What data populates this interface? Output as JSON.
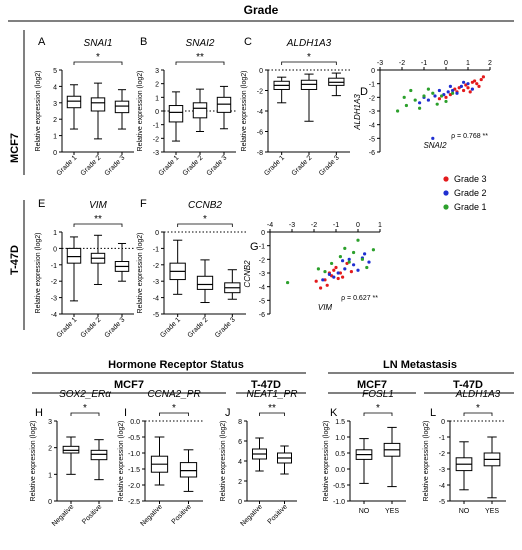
{
  "figure": {
    "title": "Grade",
    "rows": [
      "MCF7",
      "T-47D"
    ],
    "bottom_sections": [
      {
        "title": "Hormone Receptor Status",
        "groups": [
          "MCF7",
          "T-47D"
        ]
      },
      {
        "title": "LN Metastasis",
        "groups": [
          "MCF7",
          "T-47D"
        ]
      }
    ]
  },
  "chart_data": [
    {
      "panel": "A",
      "type": "boxplot",
      "title": "SNAI1",
      "ylabel": "Relative expression (log2)",
      "categories": [
        "Grade 1",
        "Grade 2",
        "Grade 3"
      ],
      "ylim": [
        0,
        5
      ],
      "yticks": [
        0,
        1,
        2,
        3,
        4,
        5
      ],
      "boxes": [
        {
          "min": 1.4,
          "q1": 2.7,
          "median": 3.1,
          "q3": 3.4,
          "max": 4.1
        },
        {
          "min": 0.8,
          "q1": 2.5,
          "median": 3.0,
          "q3": 3.3,
          "max": 4.2
        },
        {
          "min": 1.4,
          "q1": 2.4,
          "median": 2.8,
          "q3": 3.1,
          "max": 3.8
        }
      ],
      "significance": {
        "from": 0,
        "to": 2,
        "label": "*"
      },
      "ref_line": null
    },
    {
      "panel": "B",
      "type": "boxplot",
      "title": "SNAI2",
      "ylabel": "Relative expression (log2)",
      "categories": [
        "Grade 1",
        "Grade 2",
        "Grade 3"
      ],
      "ylim": [
        -3,
        3
      ],
      "yticks": [
        -3,
        -2,
        -1,
        0,
        1,
        2,
        3
      ],
      "boxes": [
        {
          "min": -2.2,
          "q1": -0.8,
          "median": -0.1,
          "q3": 0.4,
          "max": 1.4
        },
        {
          "min": -1.5,
          "q1": -0.5,
          "median": 0.2,
          "q3": 0.6,
          "max": 1.6
        },
        {
          "min": -1.3,
          "q1": -0.1,
          "median": 0.5,
          "q3": 1.0,
          "max": 1.8
        }
      ],
      "significance": {
        "from": 0,
        "to": 2,
        "label": "**"
      },
      "ref_line": 0
    },
    {
      "panel": "C",
      "type": "boxplot",
      "title": "ALDH1A3",
      "ylabel": "Relative expression (log2)",
      "categories": [
        "Grade 1",
        "Grade 2",
        "Grade 3"
      ],
      "ylim": [
        -8,
        0
      ],
      "yticks": [
        -8,
        -6,
        -4,
        -2,
        0
      ],
      "boxes": [
        {
          "min": -3.2,
          "q1": -1.9,
          "median": -1.5,
          "q3": -1.1,
          "max": -0.7
        },
        {
          "min": -5.0,
          "q1": -1.9,
          "median": -1.4,
          "q3": -1.0,
          "max": -0.4
        },
        {
          "min": -2.5,
          "q1": -1.5,
          "median": -1.2,
          "q3": -0.8,
          "max": -0.3
        }
      ],
      "significance": {
        "from": 0,
        "to": 2,
        "label": "*"
      },
      "ref_line": 0
    },
    {
      "panel": "D",
      "type": "scatter",
      "xlabel": "SNAI2",
      "ylabel": "ALDH1A3",
      "xlim": [
        -3,
        2
      ],
      "ylim": [
        -6,
        0
      ],
      "xticks": [
        -3,
        -2,
        -1,
        0,
        1,
        2
      ],
      "yticks": [
        -6,
        -5,
        -4,
        -3,
        -2,
        -1,
        0
      ],
      "annotation": "ρ = 0.768 **",
      "series": [
        {
          "name": "Grade 3",
          "color": "#e31a1c",
          "points": [
            [
              0.2,
              -1.8
            ],
            [
              0.5,
              -1.6
            ],
            [
              1.0,
              -1.3
            ],
            [
              1.4,
              -1.0
            ],
            [
              1.6,
              -0.7
            ],
            [
              0.8,
              -1.5
            ],
            [
              1.2,
              -0.9
            ],
            [
              0.0,
              -2.0
            ],
            [
              0.6,
              -1.3
            ],
            [
              1.5,
              -1.2
            ],
            [
              0.9,
              -1.1
            ],
            [
              -0.3,
              -2.1
            ],
            [
              1.7,
              -0.5
            ],
            [
              0.4,
              -1.4
            ],
            [
              1.1,
              -1.6
            ],
            [
              1.3,
              -0.8
            ]
          ]
        },
        {
          "name": "Grade 2",
          "color": "#1f2fd1",
          "points": [
            [
              -1.2,
              -2.4
            ],
            [
              -0.5,
              -1.9
            ],
            [
              0.3,
              -1.5
            ],
            [
              0.7,
              -1.2
            ],
            [
              -0.1,
              -1.8
            ],
            [
              1.0,
              -1.0
            ],
            [
              -0.8,
              -2.2
            ],
            [
              0.5,
              -1.7
            ],
            [
              -0.6,
              -5.0
            ],
            [
              0.1,
              -1.6
            ],
            [
              1.2,
              -1.4
            ],
            [
              -0.3,
              -1.5
            ],
            [
              0.8,
              -0.9
            ],
            [
              -1.0,
              -2.0
            ],
            [
              0.2,
              -1.2
            ]
          ]
        },
        {
          "name": "Grade 1",
          "color": "#2ca02c",
          "points": [
            [
              -2.2,
              -3.0
            ],
            [
              -1.8,
              -2.6
            ],
            [
              -1.4,
              -2.2
            ],
            [
              -1.0,
              -1.9
            ],
            [
              -0.6,
              -1.7
            ],
            [
              -1.6,
              -1.5
            ],
            [
              -0.2,
              -1.9
            ],
            [
              -1.2,
              -2.8
            ],
            [
              0.0,
              -2.3
            ],
            [
              -0.8,
              -1.4
            ],
            [
              -1.9,
              -2.0
            ],
            [
              0.3,
              -1.7
            ],
            [
              -0.4,
              -2.5
            ]
          ]
        }
      ]
    },
    {
      "panel": "E",
      "type": "boxplot",
      "title": "VIM",
      "ylabel": "Relative expression (log2)",
      "categories": [
        "Grade 1",
        "Grade 2",
        "Grade 3"
      ],
      "ylim": [
        -4,
        1
      ],
      "yticks": [
        -4,
        -3,
        -2,
        -1,
        0,
        1
      ],
      "boxes": [
        {
          "min": -3.2,
          "q1": -0.9,
          "median": -0.5,
          "q3": 0.0,
          "max": 0.7
        },
        {
          "min": -2.2,
          "q1": -0.9,
          "median": -0.6,
          "q3": -0.3,
          "max": 0.8
        },
        {
          "min": -2.0,
          "q1": -1.4,
          "median": -1.1,
          "q3": -0.8,
          "max": 0.3
        }
      ],
      "significance": {
        "from": 0,
        "to": 2,
        "label": "**"
      },
      "ref_line": 0
    },
    {
      "panel": "F",
      "type": "boxplot",
      "title": "CCNB2",
      "ylabel": "Relative expression (log2)",
      "categories": [
        "Grade 1",
        "Grade 2",
        "Grade 3"
      ],
      "ylim": [
        -5,
        0
      ],
      "yticks": [
        -5,
        -4,
        -3,
        -2,
        -1,
        0
      ],
      "boxes": [
        {
          "min": -3.8,
          "q1": -2.9,
          "median": -2.4,
          "q3": -1.9,
          "max": -0.5
        },
        {
          "min": -4.3,
          "q1": -3.5,
          "median": -3.2,
          "q3": -2.7,
          "max": -1.7
        },
        {
          "min": -4.1,
          "q1": -3.7,
          "median": -3.4,
          "q3": -3.1,
          "max": -2.3
        }
      ],
      "significance": {
        "from": 0,
        "to": 2,
        "label": "*"
      },
      "ref_line": 0
    },
    {
      "panel": "G",
      "type": "scatter",
      "xlabel": "VIM",
      "ylabel": "CCNB2",
      "xlim": [
        -4,
        1
      ],
      "ylim": [
        -6,
        0
      ],
      "xticks": [
        -4,
        -3,
        -2,
        -1,
        0,
        1
      ],
      "yticks": [
        -6,
        -5,
        -4,
        -3,
        -2,
        -1,
        0
      ],
      "annotation": "ρ = 0.627 **",
      "series": [
        {
          "name": "Grade 3",
          "color": "#e31a1c",
          "points": [
            [
              -1.5,
              -3.5
            ],
            [
              -1.2,
              -3.2
            ],
            [
              -0.8,
              -3.0
            ],
            [
              -1.9,
              -3.6
            ],
            [
              -1.0,
              -2.6
            ],
            [
              -0.5,
              -2.3
            ],
            [
              -1.4,
              -3.9
            ],
            [
              -0.9,
              -3.4
            ],
            [
              -1.7,
              -4.1
            ],
            [
              -0.3,
              -2.9
            ],
            [
              -1.1,
              -2.8
            ],
            [
              -0.7,
              -3.3
            ],
            [
              -1.3,
              -3.0
            ]
          ]
        },
        {
          "name": "Grade 2",
          "color": "#1f2fd1",
          "points": [
            [
              -1.3,
              -3.1
            ],
            [
              -0.6,
              -2.7
            ],
            [
              0.2,
              -1.9
            ],
            [
              -0.2,
              -2.4
            ],
            [
              -0.9,
              -3.0
            ],
            [
              0.5,
              -2.2
            ],
            [
              -1.6,
              -3.5
            ],
            [
              -0.4,
              -2.0
            ],
            [
              0.0,
              -2.8
            ],
            [
              -1.1,
              -3.3
            ],
            [
              -0.7,
              -2.1
            ],
            [
              0.3,
              -1.6
            ]
          ]
        },
        {
          "name": "Grade 1",
          "color": "#2ca02c",
          "points": [
            [
              -3.2,
              -3.7
            ],
            [
              -1.8,
              -2.7
            ],
            [
              -0.6,
              -1.2
            ],
            [
              0.0,
              -0.6
            ],
            [
              -0.2,
              -1.5
            ],
            [
              0.4,
              -2.6
            ],
            [
              -1.2,
              -2.3
            ],
            [
              0.7,
              -1.3
            ],
            [
              -0.8,
              -1.8
            ],
            [
              -1.5,
              -2.9
            ],
            [
              -0.4,
              -2.2
            ],
            [
              0.2,
              -2.0
            ]
          ]
        }
      ]
    },
    {
      "panel": "H",
      "type": "boxplot",
      "title": "SOX2_ERα",
      "ylabel": "Relative expression (log2)",
      "categories": [
        "Negative",
        "Positive"
      ],
      "ylim": [
        0,
        3
      ],
      "yticks": [
        0,
        1,
        2,
        3
      ],
      "boxes": [
        {
          "min": 1.0,
          "q1": 1.8,
          "median": 1.9,
          "q3": 2.05,
          "max": 2.4
        },
        {
          "min": 0.8,
          "q1": 1.55,
          "median": 1.75,
          "q3": 1.9,
          "max": 2.3
        }
      ],
      "significance": {
        "from": 0,
        "to": 1,
        "label": "*"
      },
      "ref_line": null
    },
    {
      "panel": "I",
      "type": "boxplot",
      "title": "CCNA2_PR",
      "ylabel": "Relative expression (log2)",
      "categories": [
        "Negative",
        "Positive"
      ],
      "ylim": [
        -2.5,
        0
      ],
      "yticks": [
        -2.5,
        -2.0,
        -1.5,
        -1.0,
        -0.5,
        0.0
      ],
      "boxes": [
        {
          "min": -2.0,
          "q1": -1.6,
          "median": -1.35,
          "q3": -1.1,
          "max": -0.5
        },
        {
          "min": -2.2,
          "q1": -1.75,
          "median": -1.55,
          "q3": -1.3,
          "max": -0.9
        }
      ],
      "significance": {
        "from": 0,
        "to": 1,
        "label": "*"
      },
      "ref_line": 0
    },
    {
      "panel": "J",
      "type": "boxplot",
      "title": "NEAT1_PR",
      "ylabel": "Relative expression (log2)",
      "categories": [
        "Negative",
        "Positive"
      ],
      "ylim": [
        0,
        8
      ],
      "yticks": [
        0,
        2,
        4,
        6,
        8
      ],
      "boxes": [
        {
          "min": 3.0,
          "q1": 4.2,
          "median": 4.7,
          "q3": 5.2,
          "max": 6.3
        },
        {
          "min": 2.7,
          "q1": 3.8,
          "median": 4.3,
          "q3": 4.8,
          "max": 5.5
        }
      ],
      "significance": {
        "from": 0,
        "to": 1,
        "label": "**"
      },
      "ref_line": null
    },
    {
      "panel": "K",
      "type": "boxplot",
      "title": "FOSL1",
      "ylabel": "Relative expression (log2)",
      "categories": [
        "NO",
        "YES"
      ],
      "ylim": [
        -1.0,
        1.5
      ],
      "yticks": [
        -1.0,
        -0.5,
        0.0,
        0.5,
        1.0,
        1.5
      ],
      "boxes": [
        {
          "min": -0.45,
          "q1": 0.3,
          "median": 0.45,
          "q3": 0.6,
          "max": 0.95
        },
        {
          "min": -0.55,
          "q1": 0.4,
          "median": 0.6,
          "q3": 0.8,
          "max": 1.3
        }
      ],
      "significance": {
        "from": 0,
        "to": 1,
        "label": "*"
      },
      "ref_line": null
    },
    {
      "panel": "L",
      "type": "boxplot",
      "title": "ALDH1A3",
      "ylabel": "Relative expression (log2)",
      "categories": [
        "NO",
        "YES"
      ],
      "ylim": [
        -5,
        0
      ],
      "yticks": [
        -5,
        -4,
        -3,
        -2,
        -1,
        0
      ],
      "boxes": [
        {
          "min": -4.3,
          "q1": -3.1,
          "median": -2.7,
          "q3": -2.3,
          "max": -1.3
        },
        {
          "min": -4.8,
          "q1": -2.8,
          "median": -2.4,
          "q3": -2.0,
          "max": -1.0
        }
      ],
      "significance": {
        "from": 0,
        "to": 1,
        "label": "*"
      },
      "ref_line": 0
    }
  ]
}
